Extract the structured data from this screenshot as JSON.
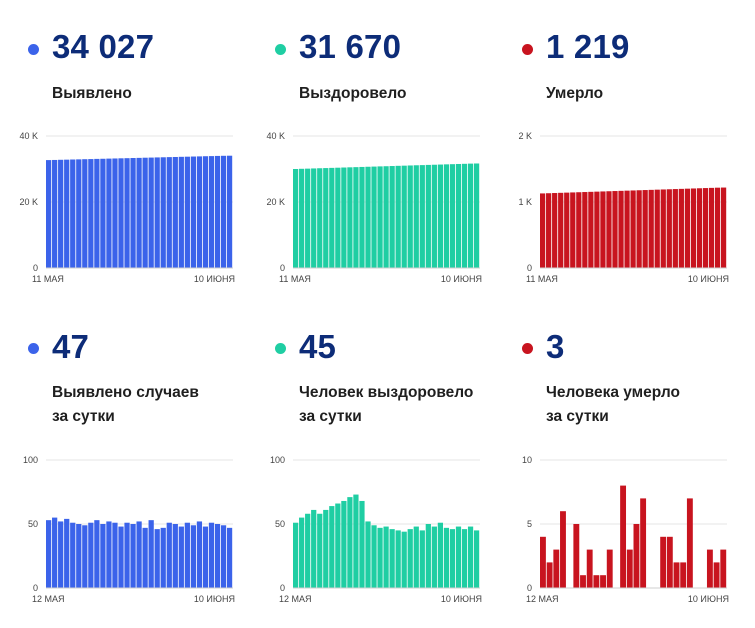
{
  "panels": [
    {
      "value": "34 027",
      "label_lines": [
        "Выявлено"
      ],
      "color": "#3b63ea",
      "chart_data": {
        "type": "bar",
        "x_start_label": "11 МАЯ",
        "x_end_label": "10 ИЮНЯ",
        "y_ticks": [
          {
            "v": 0,
            "t": "0"
          },
          {
            "v": 20000,
            "t": "20 K"
          },
          {
            "v": 40000,
            "t": "40 K"
          }
        ],
        "ylim": [
          0,
          40000
        ],
        "values": [
          32700,
          32740,
          32790,
          32830,
          32880,
          32920,
          32970,
          33010,
          33060,
          33100,
          33150,
          33190,
          33240,
          33280,
          33330,
          33370,
          33420,
          33460,
          33510,
          33550,
          33600,
          33640,
          33690,
          33730,
          33780,
          33820,
          33870,
          33910,
          33960,
          34000,
          34027
        ]
      }
    },
    {
      "value": "31 670",
      "label_lines": [
        "Выздоровело"
      ],
      "color": "#1fcea3",
      "chart_data": {
        "type": "bar",
        "x_start_label": "11 МАЯ",
        "x_end_label": "10 ИЮНЯ",
        "y_ticks": [
          {
            "v": 0,
            "t": "0"
          },
          {
            "v": 20000,
            "t": "20 K"
          },
          {
            "v": 40000,
            "t": "40 K"
          }
        ],
        "ylim": [
          0,
          40000
        ],
        "values": [
          30000,
          30060,
          30110,
          30170,
          30230,
          30280,
          30340,
          30390,
          30450,
          30510,
          30560,
          30620,
          30680,
          30730,
          30790,
          30840,
          30900,
          30960,
          31010,
          31070,
          31130,
          31180,
          31240,
          31290,
          31350,
          31410,
          31460,
          31520,
          31570,
          31630,
          31670
        ]
      }
    },
    {
      "value": "1 219",
      "label_lines": [
        "Умерло"
      ],
      "color": "#c8141f",
      "chart_data": {
        "type": "bar",
        "x_start_label": "11 МАЯ",
        "x_end_label": "10 ИЮНЯ",
        "y_ticks": [
          {
            "v": 0,
            "t": "0"
          },
          {
            "v": 1000,
            "t": "1 K"
          },
          {
            "v": 2000,
            "t": "2 K"
          }
        ],
        "ylim": [
          0,
          2000
        ],
        "values": [
          1130,
          1133,
          1136,
          1139,
          1142,
          1145,
          1148,
          1151,
          1154,
          1157,
          1160,
          1163,
          1166,
          1169,
          1172,
          1175,
          1178,
          1181,
          1184,
          1187,
          1190,
          1193,
          1196,
          1199,
          1202,
          1205,
          1208,
          1211,
          1214,
          1217,
          1219
        ]
      }
    },
    {
      "value": "47",
      "label_lines": [
        "Выявлено случаев",
        "за сутки"
      ],
      "color": "#3b63ea",
      "chart_data": {
        "type": "bar",
        "x_start_label": "12 МАЯ",
        "x_end_label": "10 ИЮНЯ",
        "y_ticks": [
          {
            "v": 0,
            "t": "0"
          },
          {
            "v": 50,
            "t": "50"
          },
          {
            "v": 100,
            "t": "100"
          }
        ],
        "ylim": [
          0,
          100
        ],
        "values": [
          53,
          55,
          52,
          54,
          51,
          50,
          49,
          51,
          53,
          50,
          52,
          51,
          48,
          51,
          50,
          52,
          47,
          53,
          46,
          47,
          51,
          50,
          48,
          51,
          49,
          52,
          48,
          51,
          50,
          49,
          47
        ]
      }
    },
    {
      "value": "45",
      "label_lines": [
        "Человек выздоровело",
        "за сутки"
      ],
      "color": "#1fcea3",
      "chart_data": {
        "type": "bar",
        "x_start_label": "12 МАЯ",
        "x_end_label": "10 ИЮНЯ",
        "y_ticks": [
          {
            "v": 0,
            "t": "0"
          },
          {
            "v": 50,
            "t": "50"
          },
          {
            "v": 100,
            "t": "100"
          }
        ],
        "ylim": [
          0,
          100
        ],
        "values": [
          51,
          55,
          58,
          61,
          58,
          61,
          64,
          66,
          68,
          71,
          73,
          68,
          52,
          49,
          47,
          48,
          46,
          45,
          44,
          46,
          48,
          45,
          50,
          48,
          51,
          47,
          46,
          48,
          46,
          48,
          45
        ]
      }
    },
    {
      "value": "3",
      "label_lines": [
        "Человека умерло",
        "за сутки"
      ],
      "color": "#c8141f",
      "chart_data": {
        "type": "bar",
        "x_start_label": "12 МАЯ",
        "x_end_label": "10 ИЮНЯ",
        "y_ticks": [
          {
            "v": 0,
            "t": "0"
          },
          {
            "v": 5,
            "t": "5"
          },
          {
            "v": 10,
            "t": "10"
          }
        ],
        "ylim": [
          0,
          10
        ],
        "values": [
          4,
          2,
          3,
          6,
          0,
          5,
          1,
          3,
          1,
          1,
          3,
          0,
          8,
          3,
          5,
          7,
          0,
          0,
          4,
          4,
          2,
          2,
          7,
          0,
          0,
          3,
          2,
          3
        ]
      }
    }
  ]
}
